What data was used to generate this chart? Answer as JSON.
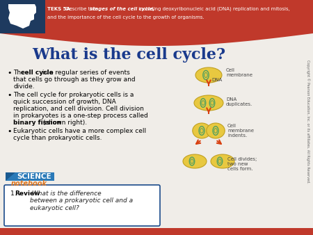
{
  "bg_color": "#f0ede8",
  "header_red": "#c0392b",
  "header_dark_blue": "#1e3a5f",
  "title": "What is the cell cycle?",
  "title_color": "#1a3a8c",
  "header_text_plain": "TEKS 5A: Describe the ",
  "header_text_bold": "stages of the cell cycle,",
  "header_text_rest": " including deoxyribonucleic acid (DNA) replication and mitosis,\nand the importance of the cell cycle to the growth of organisms.",
  "bullet1a": "The ",
  "bullet1b": "cell cycle",
  "bullet1c": " is a regular series of events\nthat cells go through as they grow and\ndivide.",
  "bullet2a": "The cell cycle for prokaryotic cells is a\nquick succession of growth, DNA\nreplication, and cell division. Cell division\nin prokaryotes is a one-step process called\n",
  "bullet2b": "binary fission",
  "bullet2c": " (shown right).",
  "bullet3": "Eukaryotic cells have a more complex cell\ncycle than prokaryotic cells.",
  "science_label": "SCIENCE",
  "notebook_label": "notebook",
  "review_text_bold": "1. Review ",
  "review_text_italic": "What is the difference\nbetween a prokaryotic cell and a\neukaryotic cell?",
  "label_cell_mem": "Cell\nmembrane",
  "label_dna": "DNA",
  "label_dna_dup": "DNA\nduplicates.",
  "label_mem_ind": "Cell\nmembrane\nindents.",
  "label_divides": "Cell divides;\ntwo new\ncells form.",
  "arrow_color": "#d84010",
  "cell_fill": "#e8c840",
  "cell_edge": "#c0a020",
  "dna_color": "#50a060",
  "science_blue": "#1a6a9a",
  "notebook_orange": "#e07820",
  "notebook_box_border": "#1a4a8a",
  "copyright_text": "Copyright © Pearson Education, Inc. or its affiliates. All Rights Reserved.",
  "bottom_bar_color": "#c0392b"
}
